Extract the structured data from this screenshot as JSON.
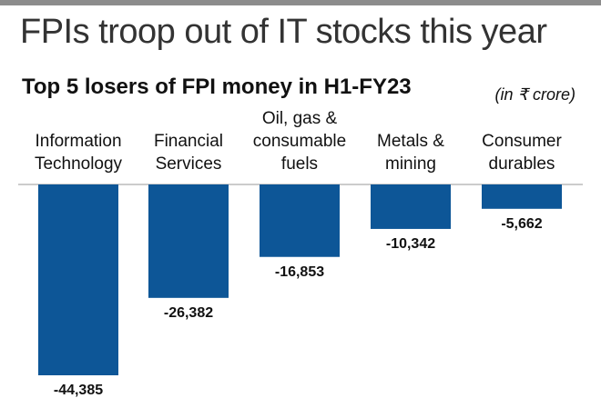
{
  "headline": "FPIs troop out of IT stocks this year",
  "chart_data": {
    "type": "bar",
    "title": "Top 5 losers of FPI money in H1-FY23",
    "unit_note": "(in ₹ crore)",
    "categories": [
      "Information\nTechnology",
      "Financial\nServices",
      "Oil, gas &\nconsumable\nfuels",
      "Metals &\nmining",
      "Consumer\ndurables"
    ],
    "values": [
      -44385,
      -26382,
      -16853,
      -10342,
      -5662
    ],
    "value_labels": [
      "-44,385",
      "-26,382",
      "-16,853",
      "-10,342",
      "-5,662"
    ],
    "ylim": [
      -44385,
      0
    ],
    "grid": false,
    "legend": "none",
    "bar_color": "#0d5697"
  }
}
